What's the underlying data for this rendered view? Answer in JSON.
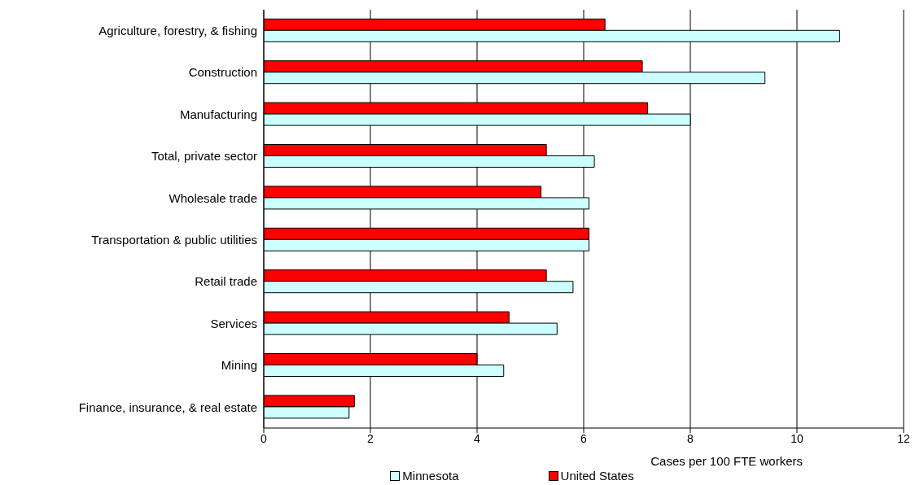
{
  "chart_data": {
    "type": "bar",
    "orientation": "horizontal",
    "categories": [
      "Agriculture, forestry, & fishing",
      "Construction",
      "Manufacturing",
      "Total, private sector",
      "Wholesale trade",
      "Transportation & public utilities",
      "Retail trade",
      "Services",
      "Mining",
      "Finance, insurance, & real estate"
    ],
    "series": [
      {
        "name": "United States",
        "color": "#ff0000",
        "values": [
          6.4,
          7.1,
          7.2,
          5.3,
          5.2,
          6.1,
          5.3,
          4.6,
          4.0,
          1.7
        ]
      },
      {
        "name": "Minnesota",
        "color": "#ccffff",
        "values": [
          10.8,
          9.4,
          8.0,
          6.2,
          6.1,
          6.1,
          5.8,
          5.5,
          4.5,
          1.6
        ]
      }
    ],
    "xlabel": "Cases per 100 FTE workers",
    "xlim": [
      0,
      12
    ],
    "xticks": [
      0,
      2,
      4,
      6,
      8,
      10,
      12
    ],
    "grid": "x",
    "legend": "bottom"
  }
}
